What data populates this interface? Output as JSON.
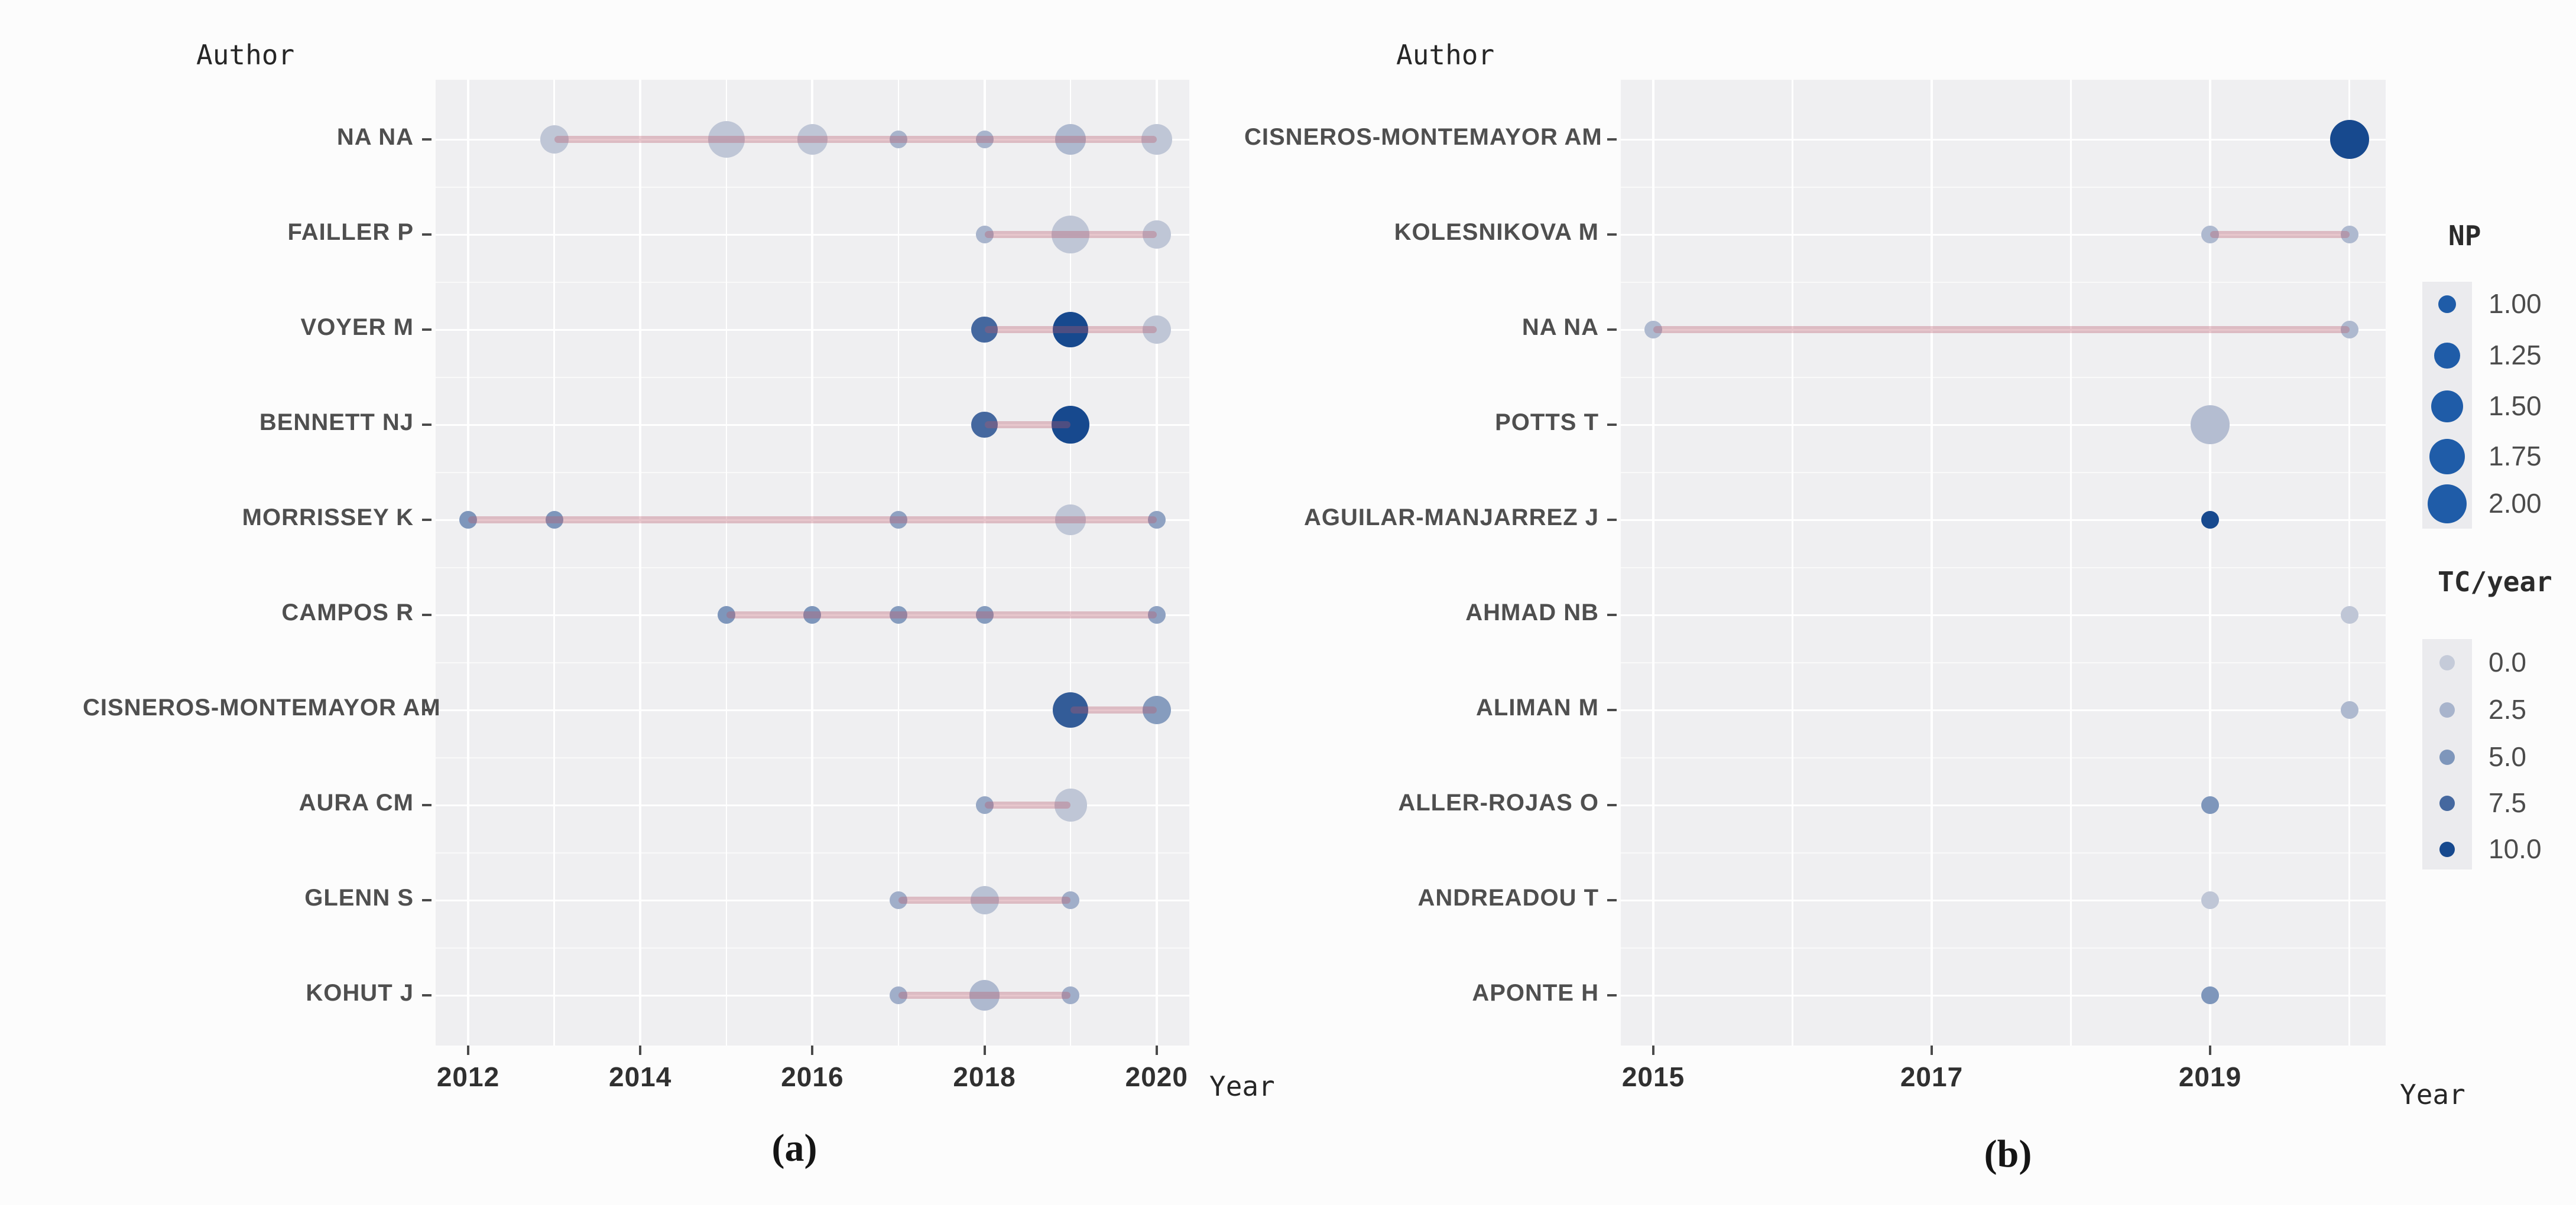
{
  "axis": {
    "y_title": "Author",
    "x_title": "Year"
  },
  "captions": {
    "a": "(a)",
    "b": "(b)"
  },
  "legend": {
    "np": {
      "title": "NP",
      "items": [
        {
          "label": "1.00",
          "np": 1.0
        },
        {
          "label": "1.25",
          "np": 1.25
        },
        {
          "label": "1.50",
          "np": 1.5
        },
        {
          "label": "1.75",
          "np": 1.75
        },
        {
          "label": "2.00",
          "np": 2.0
        }
      ]
    },
    "tc": {
      "title": "TC/year",
      "items": [
        {
          "label": "0.0",
          "value": 0
        },
        {
          "label": "2.5",
          "value": 2.5
        },
        {
          "label": "5.0",
          "value": 5
        },
        {
          "label": "7.5",
          "value": 7.5
        },
        {
          "label": "10.0",
          "value": 10
        }
      ]
    }
  },
  "colors": {
    "panel_bg": "#efeff1",
    "gridline": "#ffffff",
    "timeline": "rgba(185,88,105,0.34)",
    "tick": "#4a4a4a",
    "np_circle": "#1f5ca8",
    "tc_stops": [
      [
        0,
        "#c5cbd9"
      ],
      [
        2.5,
        "#a8b4cc"
      ],
      [
        5,
        "#7e96bb"
      ],
      [
        7.5,
        "#45689f"
      ],
      [
        10,
        "#17498e"
      ]
    ]
  },
  "chart_data": [
    {
      "type": "scatter",
      "panel": "a",
      "title": "Authors' production over time",
      "xlabel": "Year",
      "ylabel": "Author",
      "x_tick_labels": [
        "2012",
        "2014",
        "2016",
        "2018",
        "2020"
      ],
      "x_tick_years": [
        2012,
        2014,
        2016,
        2018,
        2020
      ],
      "size_variable": "NP",
      "color_variable": "TC/year",
      "series": [
        {
          "author": "NA NA",
          "line": [
            2013,
            2020
          ],
          "points": [
            {
              "year": 2013,
              "np": 1.5,
              "tc": 0.5
            },
            {
              "year": 2015,
              "np": 1.9,
              "tc": 0.5
            },
            {
              "year": 2016,
              "np": 1.6,
              "tc": 0.5
            },
            {
              "year": 2017,
              "np": 1.0,
              "tc": 2.5
            },
            {
              "year": 2018,
              "np": 1.0,
              "tc": 2.5
            },
            {
              "year": 2019,
              "np": 1.6,
              "tc": 2.0
            },
            {
              "year": 2020,
              "np": 1.6,
              "tc": 0.5
            }
          ]
        },
        {
          "author": "FAILLER P",
          "line": [
            2018,
            2020
          ],
          "points": [
            {
              "year": 2018,
              "np": 1.0,
              "tc": 2.5
            },
            {
              "year": 2019,
              "np": 1.95,
              "tc": 0.5
            },
            {
              "year": 2020,
              "np": 1.5,
              "tc": 0.5
            }
          ]
        },
        {
          "author": "VOYER M",
          "line": [
            2018,
            2020
          ],
          "points": [
            {
              "year": 2018,
              "np": 1.4,
              "tc": 7.5
            },
            {
              "year": 2019,
              "np": 1.85,
              "tc": 10
            },
            {
              "year": 2020,
              "np": 1.5,
              "tc": 0.5
            }
          ]
        },
        {
          "author": "BENNETT NJ",
          "line": [
            2018,
            2019
          ],
          "points": [
            {
              "year": 2018,
              "np": 1.4,
              "tc": 7.5
            },
            {
              "year": 2019,
              "np": 1.95,
              "tc": 10
            }
          ]
        },
        {
          "author": "MORRISSEY K",
          "line": [
            2012,
            2020
          ],
          "points": [
            {
              "year": 2012,
              "np": 1.0,
              "tc": 5
            },
            {
              "year": 2013,
              "np": 1.0,
              "tc": 5
            },
            {
              "year": 2017,
              "np": 1.0,
              "tc": 4
            },
            {
              "year": 2019,
              "np": 1.6,
              "tc": 0.5
            },
            {
              "year": 2020,
              "np": 1.0,
              "tc": 4
            }
          ]
        },
        {
          "author": "CAMPOS R",
          "line": [
            2015,
            2020
          ],
          "points": [
            {
              "year": 2015,
              "np": 1.0,
              "tc": 5
            },
            {
              "year": 2016,
              "np": 1.0,
              "tc": 5
            },
            {
              "year": 2017,
              "np": 1.0,
              "tc": 4.5
            },
            {
              "year": 2018,
              "np": 1.0,
              "tc": 4.5
            },
            {
              "year": 2020,
              "np": 1.0,
              "tc": 4
            }
          ]
        },
        {
          "author": "CISNEROS-MONTEMAYOR AM",
          "line": [
            2019,
            2020
          ],
          "points": [
            {
              "year": 2019,
              "np": 1.85,
              "tc": 8.5
            },
            {
              "year": 2020,
              "np": 1.5,
              "tc": 4.5
            }
          ]
        },
        {
          "author": "AURA CM",
          "line": [
            2018,
            2019
          ],
          "points": [
            {
              "year": 2018,
              "np": 1.0,
              "tc": 3.5
            },
            {
              "year": 2019,
              "np": 1.7,
              "tc": 0.5
            }
          ]
        },
        {
          "author": "GLENN S",
          "line": [
            2017,
            2019
          ],
          "points": [
            {
              "year": 2017,
              "np": 1.0,
              "tc": 3
            },
            {
              "year": 2018,
              "np": 1.5,
              "tc": 1
            },
            {
              "year": 2019,
              "np": 1.0,
              "tc": 3
            }
          ]
        },
        {
          "author": "KOHUT J",
          "line": [
            2017,
            2019
          ],
          "points": [
            {
              "year": 2017,
              "np": 1.0,
              "tc": 3
            },
            {
              "year": 2018,
              "np": 1.6,
              "tc": 2
            },
            {
              "year": 2019,
              "np": 1.0,
              "tc": 3
            }
          ]
        }
      ]
    },
    {
      "type": "scatter",
      "panel": "b",
      "title": "Authors' production over time",
      "xlabel": "Year",
      "ylabel": "Author",
      "x_tick_labels": [
        "2015",
        "2017",
        "2019"
      ],
      "x_tick_years": [
        2015,
        2017,
        2019
      ],
      "size_variable": "NP",
      "color_variable": "TC/year",
      "series": [
        {
          "author": "CISNEROS-MONTEMAYOR AM",
          "line": null,
          "points": [
            {
              "year": 2020,
              "np": 2.0,
              "tc": 10
            }
          ]
        },
        {
          "author": "KOLESNIKOVA M",
          "line": [
            2019,
            2020
          ],
          "points": [
            {
              "year": 2019,
              "np": 1.0,
              "tc": 2
            },
            {
              "year": 2020,
              "np": 1.0,
              "tc": 2
            }
          ]
        },
        {
          "author": "NA NA",
          "line": [
            2015,
            2020
          ],
          "points": [
            {
              "year": 2015,
              "np": 1.0,
              "tc": 2
            },
            {
              "year": 2020,
              "np": 1.0,
              "tc": 2
            }
          ]
        },
        {
          "author": "POTTS T",
          "line": null,
          "points": [
            {
              "year": 2019,
              "np": 2.0,
              "tc": 1.5
            }
          ]
        },
        {
          "author": "AGUILAR-MANJARREZ J",
          "line": null,
          "points": [
            {
              "year": 2019,
              "np": 1.0,
              "tc": 10
            }
          ]
        },
        {
          "author": "AHMAD NB",
          "line": null,
          "points": [
            {
              "year": 2020,
              "np": 1.0,
              "tc": 0.5
            }
          ]
        },
        {
          "author": "ALIMAN M",
          "line": null,
          "points": [
            {
              "year": 2020,
              "np": 1.0,
              "tc": 2
            }
          ]
        },
        {
          "author": "ALLER-ROJAS O",
          "line": null,
          "points": [
            {
              "year": 2019,
              "np": 1.0,
              "tc": 5
            }
          ]
        },
        {
          "author": "ANDREADOU T",
          "line": null,
          "points": [
            {
              "year": 2019,
              "np": 1.0,
              "tc": 0.5
            }
          ]
        },
        {
          "author": "APONTE H",
          "line": null,
          "points": [
            {
              "year": 2019,
              "np": 1.0,
              "tc": 5
            }
          ]
        }
      ]
    }
  ]
}
